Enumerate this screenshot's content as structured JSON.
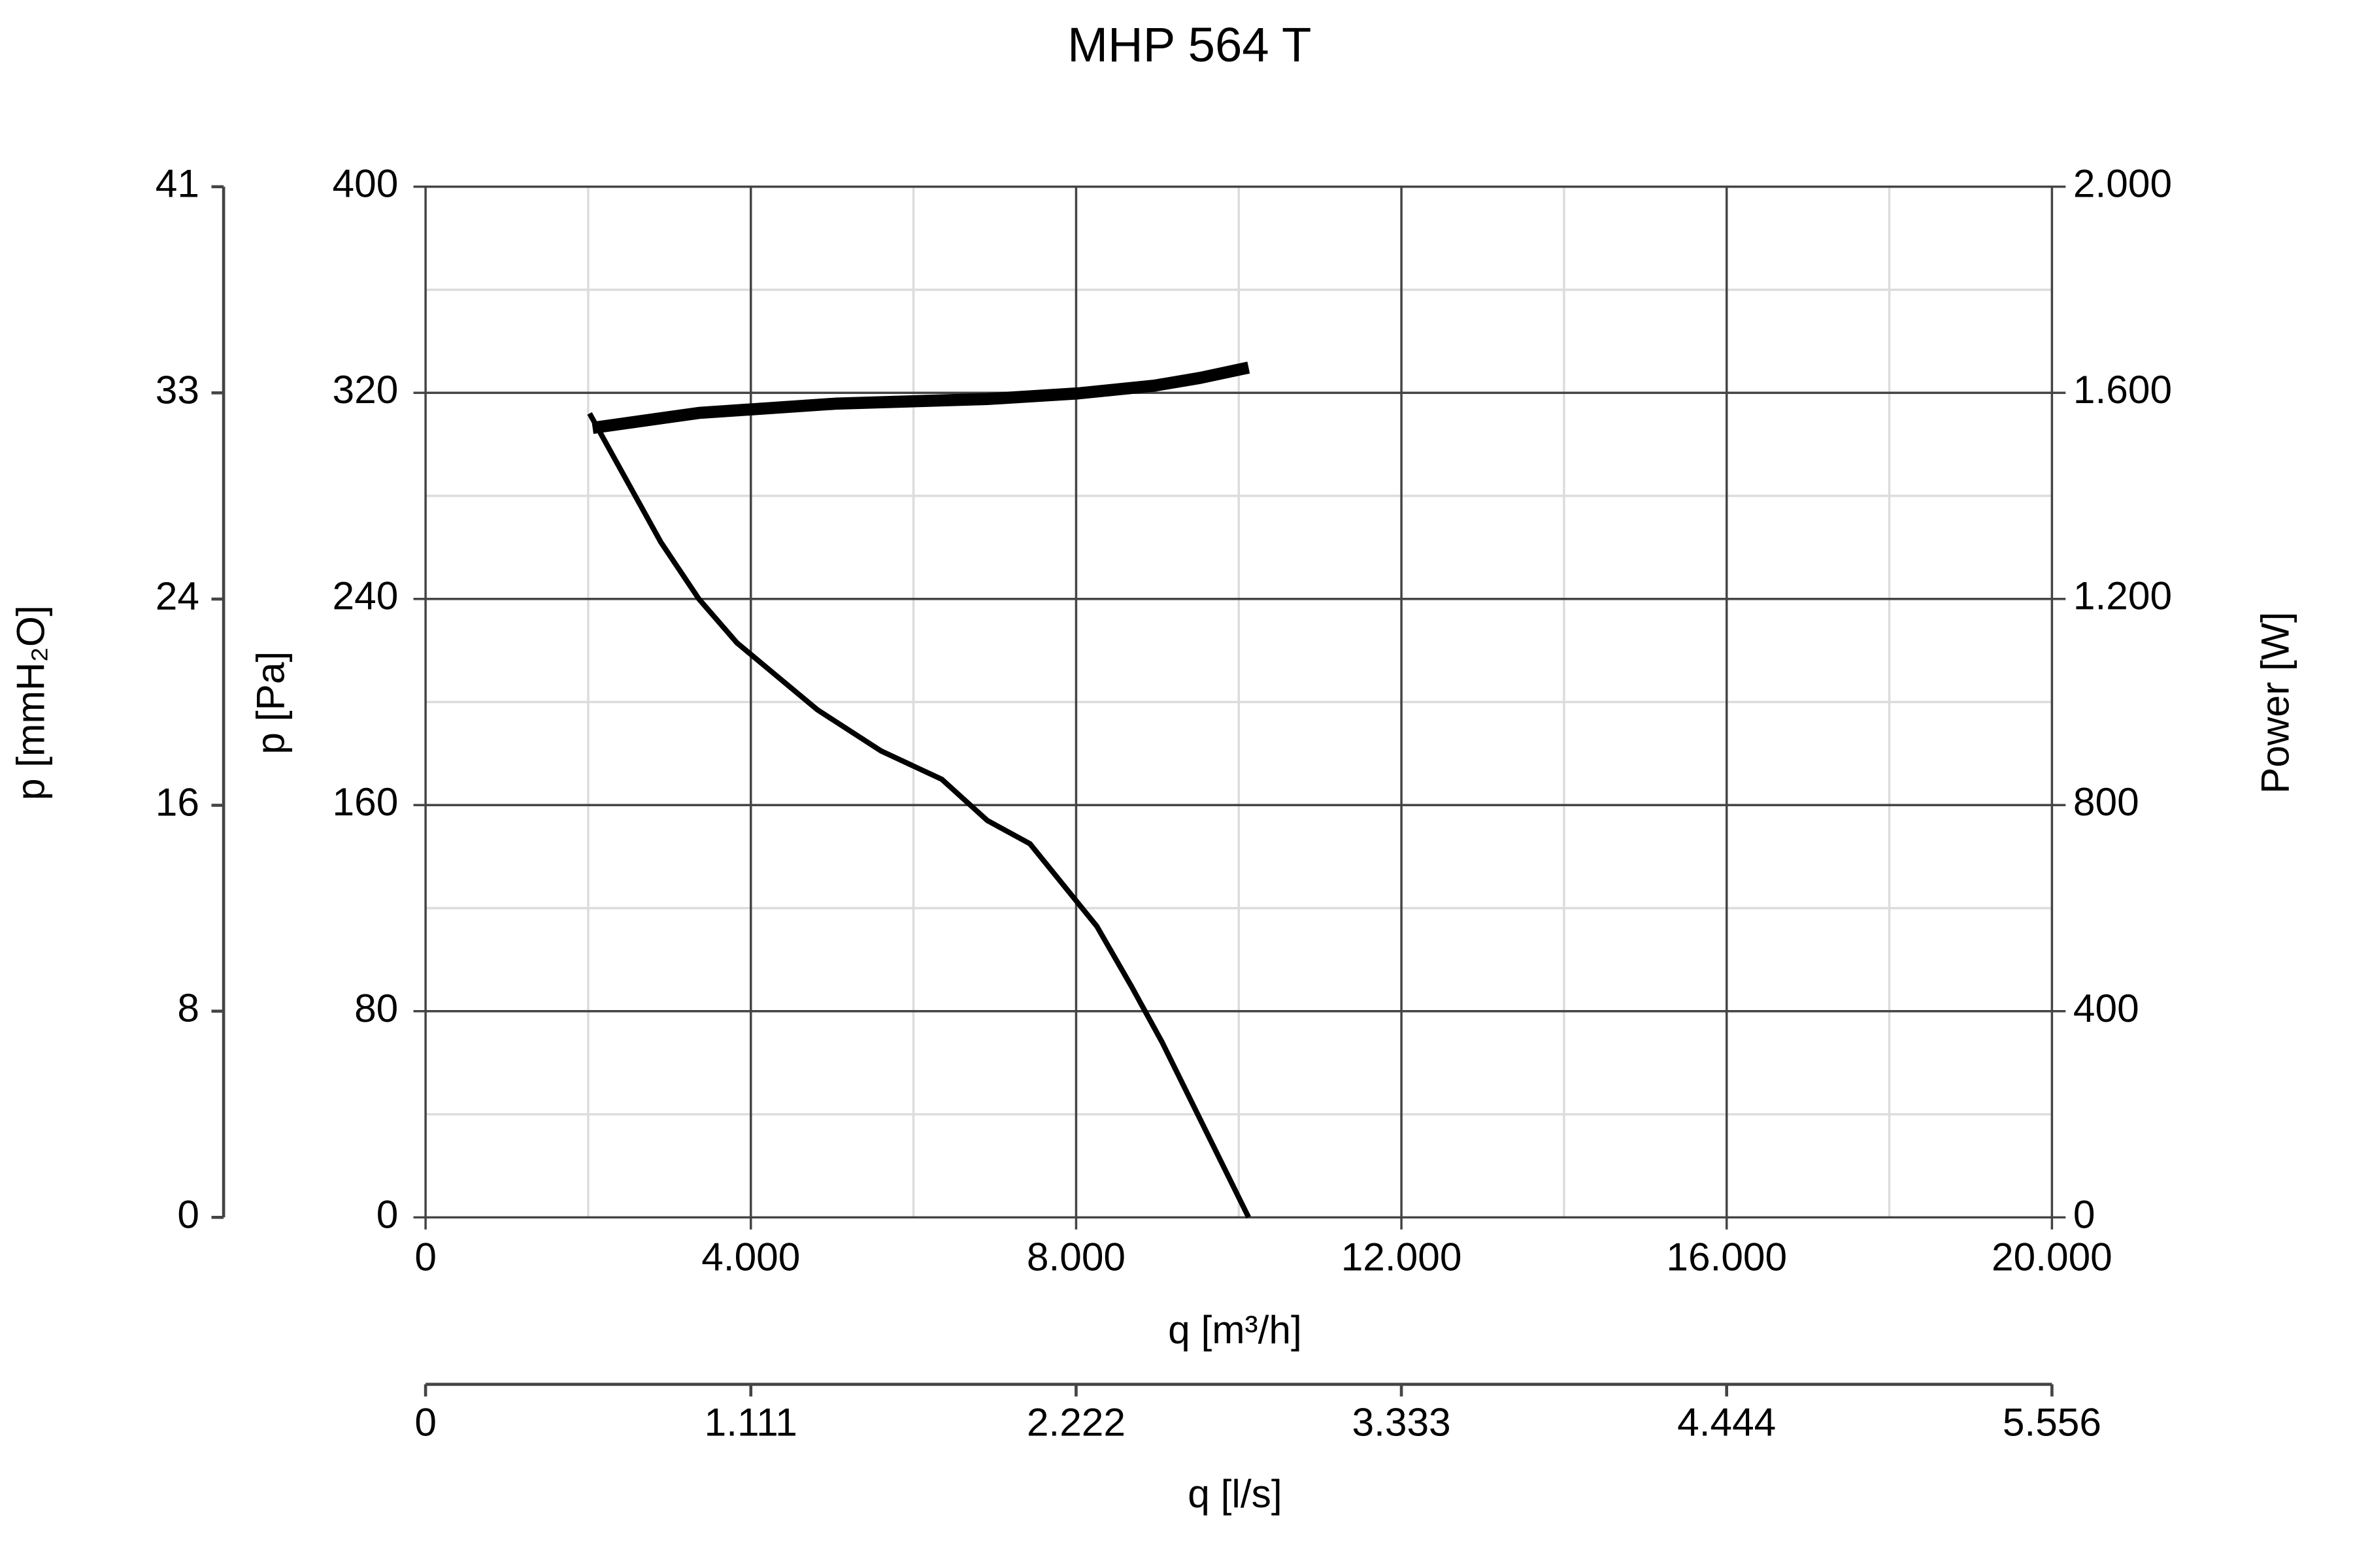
{
  "chart_data": {
    "type": "line",
    "title": "MHP 564 T",
    "x_label": "q [m³/h]",
    "x2_label": "q [l/s]",
    "y_label": "p [Pa]",
    "y3_label": "p [mmH₂O]",
    "y2_label": "Power [W]",
    "xlim": [
      0,
      20000
    ],
    "xticks": [
      0,
      {
        "value": 4000,
        "label": "4.000"
      },
      {
        "value": 8000,
        "label": "8.000"
      },
      {
        "value": 12000,
        "label": "12.000"
      },
      {
        "value": 16000,
        "label": "16.000"
      },
      {
        "value": 20000,
        "label": "20.000"
      }
    ],
    "minor_xticks": [
      2000,
      6000,
      10000,
      14000,
      18000
    ],
    "x2lim": [
      0,
      5555.6
    ],
    "x2ticks": [
      0,
      {
        "value": 1111.1,
        "label": "1.111"
      },
      {
        "value": 2222.2,
        "label": "2.222"
      },
      {
        "value": 3333.3,
        "label": "3.333"
      },
      {
        "value": 4444.4,
        "label": "4.444"
      },
      {
        "value": 5555.6,
        "label": "5.556"
      }
    ],
    "ylim": [
      0,
      400
    ],
    "yticks": [
      0,
      80,
      160,
      240,
      320,
      400
    ],
    "minor_yticks": [
      40,
      120,
      200,
      280,
      360
    ],
    "y3lim": [
      0,
      40.79
    ],
    "y3ticks": [
      0,
      {
        "value": 8.16,
        "label": "8"
      },
      {
        "value": 16.31,
        "label": "16"
      },
      {
        "value": 24.47,
        "label": "24"
      },
      {
        "value": 32.63,
        "label": "33"
      },
      {
        "value": 40.79,
        "label": "41"
      }
    ],
    "y2lim": [
      0,
      2000
    ],
    "y2ticks": [
      0,
      400,
      800,
      {
        "value": 1200,
        "label": "1.200"
      },
      {
        "value": 1600,
        "label": "1.600"
      },
      {
        "value": 2000,
        "label": "2.000"
      }
    ],
    "grid": true,
    "series": [
      {
        "color": "#000000",
        "x": [
          2017,
          2894,
          3361,
          3828,
          4818,
          5602,
          6349,
          6909,
          7432,
          8254,
          8683,
          9057,
          10121
        ],
        "values": [
          312,
          262,
          240,
          223,
          197,
          181,
          170,
          154,
          145,
          113,
          89.5,
          68,
          0
        ]
      },
      {
        "color": "#000000",
        "axis": "y2",
        "x": [
          2054,
          3361,
          5042,
          6909,
          8030,
          8964,
          9524,
          10121
        ],
        "values": [
          1532,
          1561,
          1579,
          1588,
          1599,
          1614,
          1629,
          1649
        ]
      }
    ]
  }
}
